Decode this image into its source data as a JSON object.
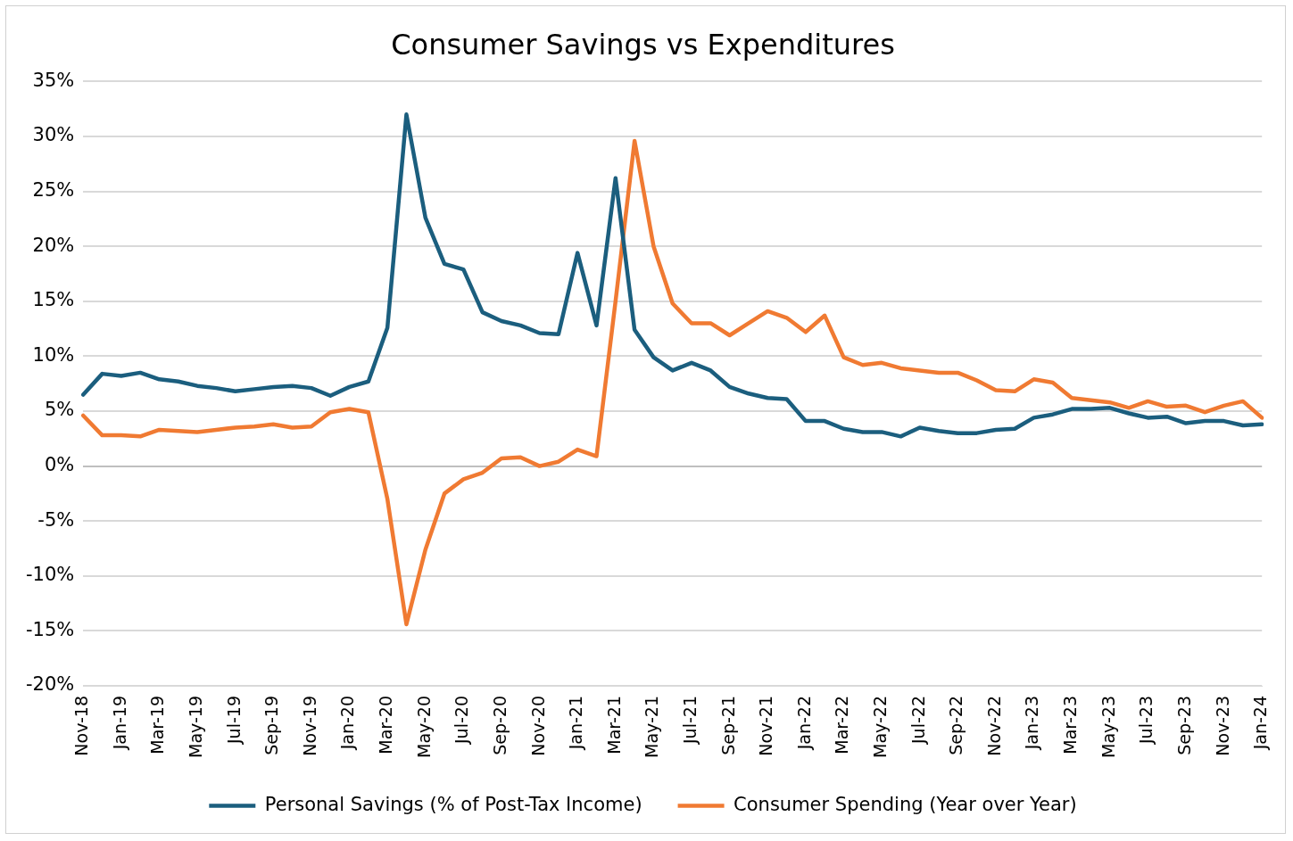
{
  "chart_data": {
    "type": "line",
    "title": "Consumer Savings vs Expenditures",
    "categories": [
      "Nov-18",
      null,
      "Jan-19",
      null,
      "Mar-19",
      null,
      "May-19",
      null,
      "Jul-19",
      null,
      "Sep-19",
      null,
      "Nov-19",
      null,
      "Jan-20",
      null,
      "Mar-20",
      null,
      "May-20",
      null,
      "Jul-20",
      null,
      "Sep-20",
      null,
      "Nov-20",
      null,
      "Jan-21",
      null,
      "Mar-21",
      null,
      "May-21",
      null,
      "Jul-21",
      null,
      "Sep-21",
      null,
      "Nov-21",
      null,
      "Jan-22",
      null,
      "Mar-22",
      null,
      "May-22",
      null,
      "Jul-22",
      null,
      "Sep-22",
      null,
      "Nov-22",
      null,
      "Jan-23",
      null,
      "Mar-23",
      null,
      "May-23",
      null,
      "Jul-23",
      null,
      "Sep-23",
      null,
      "Nov-23",
      null,
      "Jan-24"
    ],
    "series": [
      {
        "name": "Personal Savings (% of Post-Tax Income)",
        "color": "#1b5e7e",
        "values": [
          6.5,
          8.4,
          8.2,
          8.5,
          7.9,
          7.7,
          7.3,
          7.1,
          6.8,
          7.0,
          7.2,
          7.3,
          7.1,
          6.4,
          7.2,
          7.7,
          12.6,
          32.0,
          22.6,
          18.4,
          17.9,
          14.0,
          13.2,
          12.8,
          12.1,
          12.0,
          19.4,
          12.8,
          26.2,
          12.4,
          9.9,
          8.7,
          9.4,
          8.7,
          7.2,
          6.6,
          6.2,
          6.1,
          4.1,
          4.1,
          3.4,
          3.1,
          3.1,
          2.7,
          3.5,
          3.2,
          3.0,
          3.0,
          3.3,
          3.4,
          4.4,
          4.7,
          5.2,
          5.2,
          5.3,
          4.8,
          4.4,
          4.5,
          3.9,
          4.1,
          4.1,
          3.7,
          3.8
        ]
      },
      {
        "name": "Consumer Spending (Year over Year)",
        "color": "#f07a32",
        "values": [
          4.6,
          2.8,
          2.8,
          2.7,
          3.3,
          3.2,
          3.1,
          3.3,
          3.5,
          3.6,
          3.8,
          3.5,
          3.6,
          4.9,
          5.2,
          4.9,
          -3.0,
          -14.4,
          -7.6,
          -2.5,
          -1.2,
          -0.6,
          0.7,
          0.8,
          0.0,
          0.4,
          1.5,
          0.9,
          15.0,
          29.6,
          20.0,
          14.8,
          13.0,
          13.0,
          11.9,
          13.0,
          14.1,
          13.5,
          12.2,
          13.7,
          9.9,
          9.2,
          9.4,
          8.9,
          8.7,
          8.5,
          8.5,
          7.8,
          6.9,
          6.8,
          7.9,
          7.6,
          6.2,
          6.0,
          5.8,
          5.3,
          5.9,
          5.4,
          5.5,
          4.9,
          5.5,
          5.9,
          4.4
        ]
      }
    ],
    "ylim": [
      -20,
      35
    ],
    "yticks": [
      {
        "value": -20,
        "label": "-20%"
      },
      {
        "value": -15,
        "label": "-15%"
      },
      {
        "value": -10,
        "label": "-10%"
      },
      {
        "value": -5,
        "label": "-5%"
      },
      {
        "value": 0,
        "label": "0%"
      },
      {
        "value": 5,
        "label": "5%"
      },
      {
        "value": 10,
        "label": "10%"
      },
      {
        "value": 15,
        "label": "15%"
      },
      {
        "value": 20,
        "label": "20%"
      },
      {
        "value": 25,
        "label": "25%"
      },
      {
        "value": 30,
        "label": "30%"
      },
      {
        "value": 35,
        "label": "35%"
      }
    ],
    "grid": "y",
    "legend": "bottom",
    "marker": "none",
    "line_style": "solid"
  }
}
